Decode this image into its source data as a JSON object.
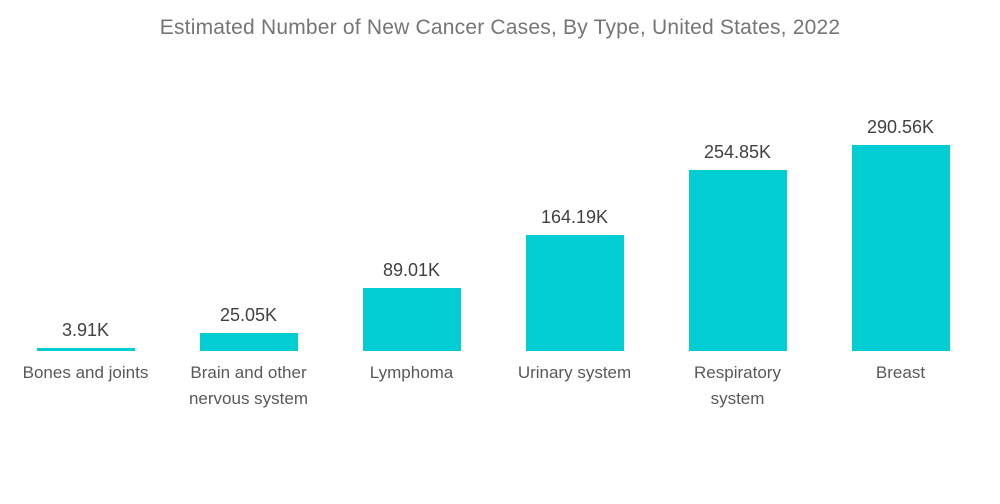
{
  "title": "Estimated Number of New Cancer Cases, By Type, United States, 2022",
  "chart_data": {
    "type": "bar",
    "title": "Estimated Number of New Cancer Cases, By Type, United States, 2022",
    "categories": [
      "Bones and joints",
      "Brain and other nervous system",
      "Lymphoma",
      "Urinary system",
      "Respiratory system",
      "Breast"
    ],
    "values": [
      3.91,
      25.05,
      89.01,
      164.19,
      254.85,
      290.56
    ],
    "value_labels": [
      "3.91K",
      "25.05K",
      "89.01K",
      "164.19K",
      "254.85K",
      "290.56K"
    ],
    "unit": "K (thousand cases)",
    "xlabel": "",
    "ylabel": "",
    "ylim": [
      0,
      300
    ],
    "grid": false,
    "legend": false,
    "axes_shown": false,
    "bar_color": "#01CDD3",
    "title_color": "#757575",
    "value_label_color": "#414141",
    "category_label_color": "#595959",
    "background_color": "#FFFFFF"
  }
}
